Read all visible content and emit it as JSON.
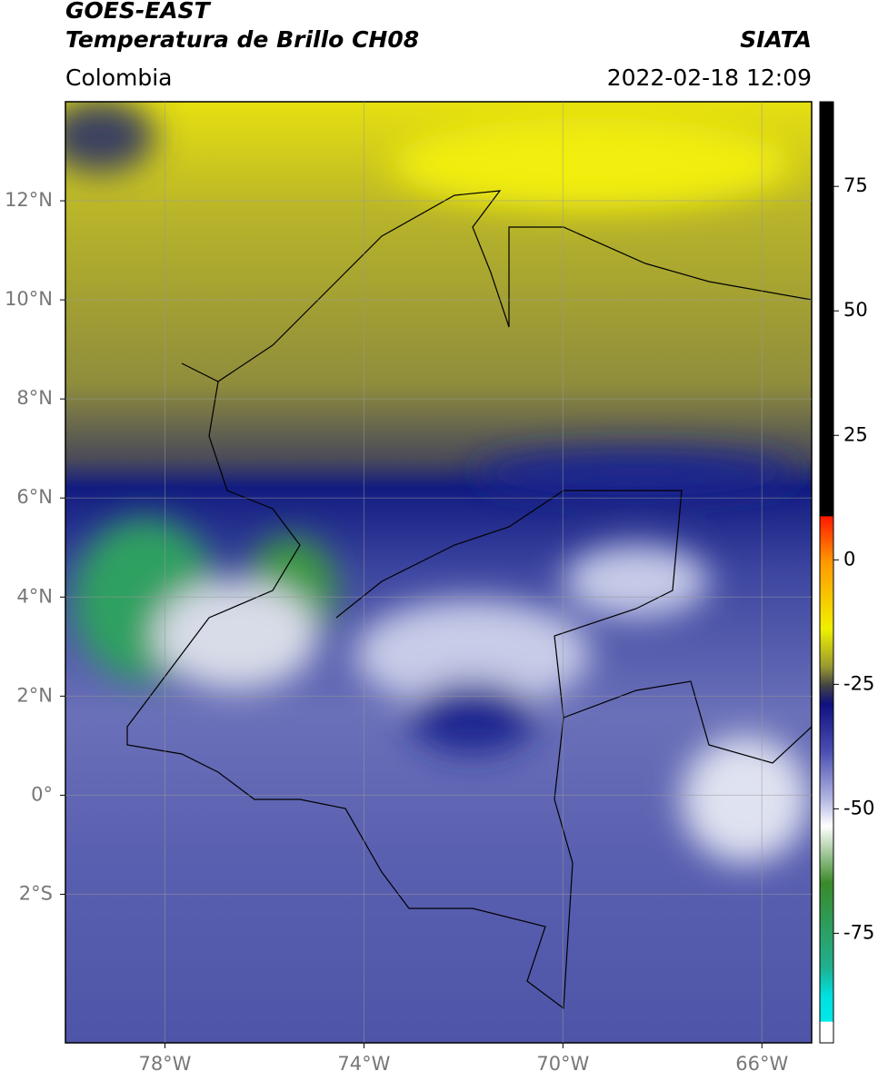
{
  "header": {
    "title": "GOES-EAST",
    "subtitle": "Temperatura de Brillo CH08",
    "source": "SIATA",
    "region": "Colombia",
    "datetime": "2022-02-18 12:09"
  },
  "map": {
    "xlim": [
      -80,
      -65
    ],
    "ylim": [
      -5,
      14
    ],
    "grid": true,
    "xticks": [
      {
        "value": -78,
        "label": "78°W"
      },
      {
        "value": -74,
        "label": "74°W"
      },
      {
        "value": -70,
        "label": "70°W"
      },
      {
        "value": -66,
        "label": "66°W"
      }
    ],
    "yticks": [
      {
        "value": 12,
        "label": "12°N"
      },
      {
        "value": 10,
        "label": "10°N"
      },
      {
        "value": 8,
        "label": "8°N"
      },
      {
        "value": 6,
        "label": "6°N"
      },
      {
        "value": 4,
        "label": "4°N"
      },
      {
        "value": 2,
        "label": "2°N"
      },
      {
        "value": 0,
        "label": "0°"
      },
      {
        "value": -2,
        "label": "2°S"
      }
    ]
  },
  "colorbar": {
    "lim": [
      -97,
      92
    ],
    "ticks": [
      75,
      50,
      25,
      0,
      -25,
      -50,
      -75
    ]
  }
}
